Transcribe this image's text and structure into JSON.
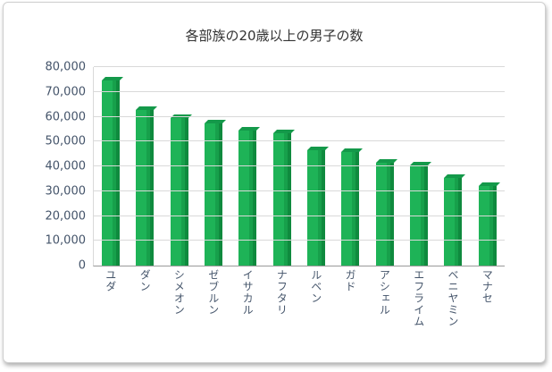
{
  "chart_data": {
    "type": "bar",
    "title": "各部族の20歳以上の男子の数",
    "categories": [
      "ユダ",
      "ダン",
      "シメオン",
      "ゼブルン",
      "イサカル",
      "ナフタリ",
      "ルベン",
      "ガド",
      "アシェル",
      "エフライム",
      "ベニヤミン",
      "マナセ"
    ],
    "values": [
      74600,
      62700,
      59300,
      57400,
      54400,
      53400,
      46500,
      45650,
      41500,
      40500,
      35400,
      32200
    ],
    "xlabel": "",
    "ylabel": "",
    "ylim": [
      0,
      80000
    ],
    "ytick_step": 10000,
    "ytick_labels": [
      "0",
      "10,000",
      "20,000",
      "30,000",
      "40,000",
      "50,000",
      "60,000",
      "70,000",
      "80,000"
    ],
    "grid": true,
    "legend": "none",
    "bar_face_color": "#1eb357",
    "bar_side_color": "#0f8a3e",
    "gridline_color": "#d9d9d9",
    "axis_label_color": "#44546A",
    "title_color": "#333333"
  }
}
